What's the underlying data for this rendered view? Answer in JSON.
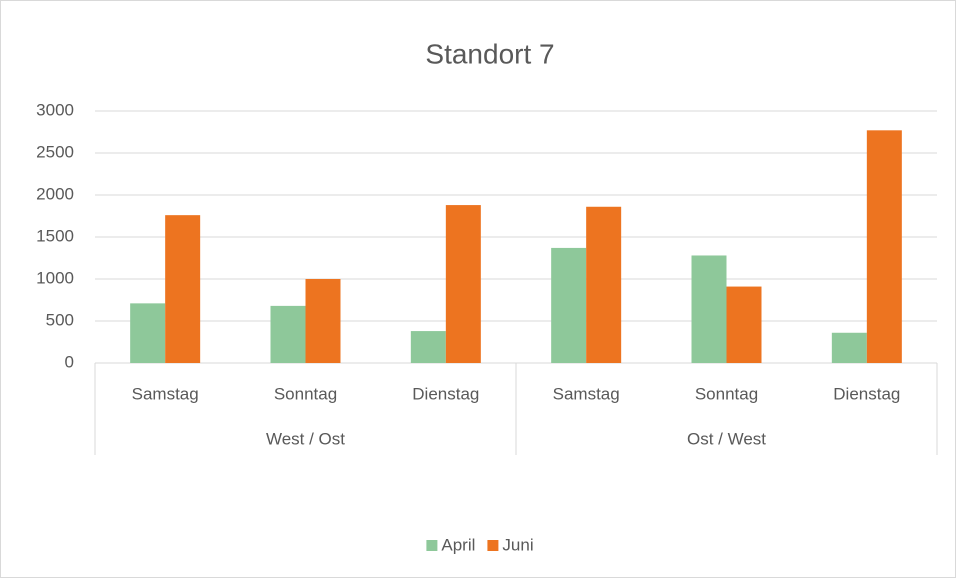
{
  "chart_data": {
    "type": "bar",
    "title": "Standort 7",
    "categories": [
      "Samstag",
      "Sonntag",
      "Dienstag",
      "Samstag",
      "Sonntag",
      "Dienstag"
    ],
    "group_labels": [
      "West / Ost",
      "Ost / West"
    ],
    "series": [
      {
        "name": "April",
        "color": "#8ec89a",
        "values": [
          710,
          680,
          380,
          1370,
          1280,
          360
        ]
      },
      {
        "name": "Juni",
        "color": "#ed7420",
        "values": [
          1760,
          1000,
          1880,
          1860,
          910,
          2770
        ]
      }
    ],
    "ylim": [
      0,
      3000
    ],
    "yticks": [
      0,
      500,
      1000,
      1500,
      2000,
      2500,
      3000
    ],
    "grid": true,
    "legend": "bottom"
  }
}
